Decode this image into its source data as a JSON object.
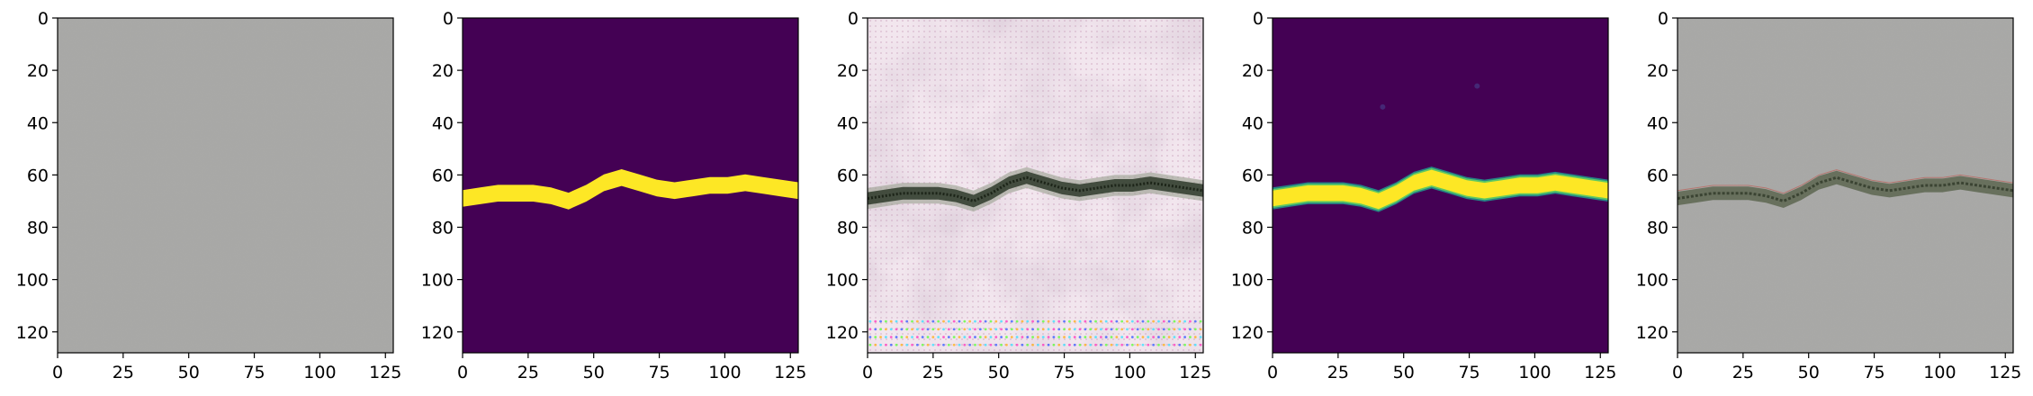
{
  "figure": {
    "panels": [
      {
        "name": "input-image-panel",
        "kind": "gray-texture"
      },
      {
        "name": "mask-panel-1",
        "kind": "mask-sharp"
      },
      {
        "name": "generated-image-panel",
        "kind": "pink-generated"
      },
      {
        "name": "mask-panel-2",
        "kind": "mask-smooth"
      },
      {
        "name": "overlay-image-panel",
        "kind": "gray-overlay"
      }
    ],
    "x_ticks": [
      "0",
      "25",
      "50",
      "75",
      "100",
      "125"
    ],
    "y_ticks": [
      "0",
      "20",
      "40",
      "60",
      "80",
      "100",
      "120"
    ],
    "x_tick_values": [
      0,
      25,
      50,
      75,
      100,
      125
    ],
    "y_tick_values": [
      0,
      20,
      40,
      60,
      80,
      100,
      120
    ],
    "image_size": 128,
    "colors": {
      "mask_background": "#440154",
      "mask_foreground": "#fde725",
      "gray_texture": "#a7a7a5",
      "pink_texture": "#f2e6ee",
      "crack_dark": "#2e3a2a"
    },
    "crack_profile_y": [
      69,
      68,
      67,
      67,
      67,
      68,
      70,
      67,
      63,
      61,
      63,
      65,
      66,
      65,
      64,
      64,
      63,
      64,
      65,
      66
    ]
  }
}
